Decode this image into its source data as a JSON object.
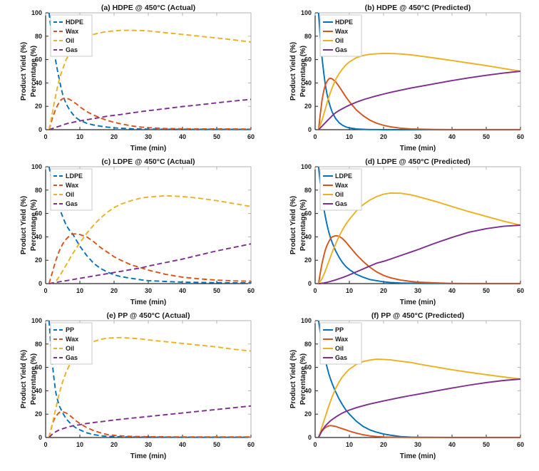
{
  "palette": {
    "polymer_blue": "#0072BD",
    "wax_orange": "#D95319",
    "oil_yellow": "#EDB120",
    "gas_purple": "#7E2F8E"
  },
  "axis_style": {
    "spine_dark": "#262626",
    "spine_light": "#b3b3b3",
    "text_color": "#1a1a1a"
  },
  "chart_data": [
    {
      "type": "line",
      "title": "(a) HDPE @ 450°C (Actual)",
      "xlabel": "Time (min)",
      "ylabel_line1": "Product Yield (%)",
      "ylabel_line2": "Percentage (%)",
      "line_style": "dashed",
      "legend_position": "top-left",
      "xlim": [
        0,
        60
      ],
      "ylim": [
        0,
        100
      ],
      "x_ticks": [
        0,
        10,
        20,
        30,
        40,
        50,
        60
      ],
      "y_ticks": [
        0,
        20,
        40,
        60,
        80,
        100
      ],
      "x": [
        1,
        1.5,
        2,
        2.5,
        3,
        3.5,
        4,
        4.5,
        5,
        6,
        7,
        8,
        9,
        10,
        12,
        14,
        16,
        18,
        20,
        22,
        25,
        28,
        30,
        35,
        40,
        45,
        50,
        55,
        60
      ],
      "series": [
        {
          "name": "HDPE",
          "color": "#0072BD",
          "y": [
            100,
            88,
            77,
            67,
            58,
            50,
            43,
            36,
            30,
            22,
            17,
            13,
            10,
            8,
            5.5,
            4,
            3,
            2.2,
            1.6,
            1.2,
            0.8,
            0.6,
            0.5,
            0.4,
            0.4,
            0.3,
            0.3,
            0.3,
            0.3
          ]
        },
        {
          "name": "Wax",
          "color": "#D95319",
          "y": [
            0,
            5,
            10,
            14,
            18,
            21,
            23.5,
            25.5,
            26.5,
            27,
            26,
            24,
            22,
            19.5,
            15.5,
            12.5,
            10,
            8,
            6.3,
            5,
            3.3,
            2.2,
            1.7,
            1,
            0.8,
            0.7,
            0.6,
            0.6,
            0.5
          ]
        },
        {
          "name": "Oil",
          "color": "#EDB120",
          "y": [
            0,
            7,
            15,
            23,
            30,
            37,
            43,
            48,
            52,
            60,
            65,
            69,
            72,
            75,
            79,
            81.5,
            83,
            84,
            84.5,
            85,
            85,
            84.8,
            84.5,
            83,
            81.5,
            80,
            78.5,
            76.8,
            75
          ]
        },
        {
          "name": "Gas",
          "color": "#7E2F8E",
          "y": [
            0,
            0.5,
            1,
            1.5,
            2,
            2.5,
            3,
            3.5,
            4,
            5,
            5.7,
            6.3,
            7,
            7.5,
            8.5,
            9.5,
            10.5,
            11.5,
            12.3,
            13,
            14.3,
            15.5,
            16.3,
            18,
            19.8,
            21.3,
            23,
            24.5,
            26
          ]
        }
      ]
    },
    {
      "type": "line",
      "title": "(b) HDPE @ 450°C (Predicted)",
      "xlabel": "Time (min)",
      "ylabel_line1": "Product Yield (%)",
      "ylabel_line2": "Percentage (%)",
      "line_style": "solid",
      "legend_position": "top-left",
      "xlim": [
        0,
        60
      ],
      "ylim": [
        0,
        100
      ],
      "x_ticks": [
        0,
        10,
        20,
        30,
        40,
        50,
        60
      ],
      "y_ticks": [
        0,
        20,
        40,
        60,
        80,
        100
      ],
      "x": [
        1,
        1.5,
        2,
        2.5,
        3,
        3.5,
        4,
        4.5,
        5,
        6,
        7,
        8,
        9,
        10,
        12,
        14,
        16,
        18,
        20,
        22,
        25,
        28,
        30,
        35,
        40,
        45,
        50,
        55,
        60
      ],
      "series": [
        {
          "name": "HDPE",
          "color": "#0072BD",
          "y": [
            100,
            79,
            62,
            49,
            38,
            30,
            24,
            19,
            15,
            9.5,
            6,
            3.8,
            2.4,
            1.5,
            0.6,
            0.3,
            0.1,
            0.1,
            0,
            0,
            0,
            0,
            0,
            0,
            0,
            0,
            0,
            0,
            0
          ]
        },
        {
          "name": "Wax",
          "color": "#D95319",
          "y": [
            0,
            13,
            25,
            33,
            38.5,
            41.5,
            43.5,
            44,
            43.5,
            41,
            37,
            32.5,
            28,
            24,
            17,
            12,
            8.2,
            5.5,
            3.7,
            2.5,
            1.3,
            0.7,
            0.5,
            0.2,
            0.1,
            0.1,
            0.1,
            0.1,
            0.1
          ]
        },
        {
          "name": "Oil",
          "color": "#EDB120",
          "y": [
            0,
            4,
            8,
            13,
            18,
            23,
            28,
            32,
            36,
            43,
            48,
            52,
            55.5,
            58,
            61.5,
            63.5,
            64.5,
            65,
            65.2,
            65.2,
            64.8,
            64,
            63.3,
            61.3,
            59.2,
            57,
            54.8,
            52.4,
            50
          ]
        },
        {
          "name": "Gas",
          "color": "#7E2F8E",
          "y": [
            0,
            1.5,
            3,
            4.5,
            6,
            7.5,
            9,
            10.5,
            12,
            14.5,
            16.4,
            18,
            19.6,
            21,
            23.5,
            25.6,
            27.4,
            29,
            30.5,
            31.9,
            33.8,
            35.6,
            36.7,
            39.4,
            42,
            44.4,
            46.5,
            48.4,
            50
          ]
        }
      ]
    },
    {
      "type": "line",
      "title": "(c) LDPE @ 450°C (Actual)",
      "xlabel": "Time (min)",
      "ylabel_line1": "Product Yield (%)",
      "ylabel_line2": "Percentage (%)",
      "line_style": "dashed",
      "legend_position": "top-left",
      "xlim": [
        0,
        60
      ],
      "ylim": [
        0,
        100
      ],
      "x_ticks": [
        0,
        10,
        20,
        30,
        40,
        50,
        60
      ],
      "y_ticks": [
        0,
        20,
        40,
        60,
        80,
        100
      ],
      "x": [
        1,
        1.5,
        2,
        2.5,
        3,
        3.5,
        4,
        4.5,
        5,
        6,
        7,
        8,
        9,
        10,
        12,
        14,
        16,
        18,
        20,
        22,
        25,
        28,
        30,
        35,
        40,
        45,
        50,
        55,
        60
      ],
      "series": [
        {
          "name": "LDPE",
          "color": "#0072BD",
          "y": [
            100,
            93,
            87,
            81,
            75,
            70,
            65,
            61,
            57,
            50,
            45.5,
            42,
            37,
            32,
            24,
            17.5,
            13,
            10,
            7.5,
            6,
            4.5,
            3.2,
            2.5,
            1.8,
            1.2,
            1,
            0.8,
            0.7,
            0.6
          ]
        },
        {
          "name": "Wax",
          "color": "#D95319",
          "y": [
            0,
            5,
            10,
            15,
            20,
            24,
            28,
            31,
            34,
            38,
            41,
            42.5,
            42.5,
            42,
            40,
            36,
            31,
            27,
            23,
            20,
            16,
            13.5,
            11.5,
            8,
            5.5,
            4,
            3,
            2.3,
            2
          ]
        },
        {
          "name": "Oil",
          "color": "#EDB120",
          "y": [
            0,
            0.2,
            0.5,
            1.2,
            2,
            4,
            6,
            8.5,
            11,
            16,
            21,
            26,
            30.5,
            35,
            43,
            50,
            56,
            61,
            65,
            68,
            71,
            73.3,
            74,
            75.2,
            74.5,
            73,
            71,
            68.5,
            66
          ]
        },
        {
          "name": "Gas",
          "color": "#7E2F8E",
          "y": [
            0,
            0.2,
            0.5,
            0.7,
            1,
            1.2,
            1.5,
            1.8,
            2,
            2.5,
            3,
            3.5,
            4,
            4.5,
            5.5,
            6.5,
            7.5,
            8.5,
            9.5,
            10.5,
            12,
            13.5,
            15,
            18,
            21,
            24.5,
            28,
            31,
            34
          ]
        }
      ]
    },
    {
      "type": "line",
      "title": "(d) LDPE @ 450°C (Predicted)",
      "xlabel": "Time (min)",
      "ylabel_line1": "Product Yield (%)",
      "ylabel_line2": "Percentage (%)",
      "line_style": "solid",
      "legend_position": "top-left",
      "xlim": [
        0,
        60
      ],
      "ylim": [
        0,
        100
      ],
      "x_ticks": [
        0,
        10,
        20,
        30,
        40,
        50,
        60
      ],
      "y_ticks": [
        0,
        20,
        40,
        60,
        80,
        100
      ],
      "x": [
        1,
        1.5,
        2,
        2.5,
        3,
        3.5,
        4,
        4.5,
        5,
        6,
        7,
        8,
        9,
        10,
        12,
        14,
        16,
        18,
        20,
        22,
        25,
        28,
        30,
        35,
        40,
        45,
        50,
        55,
        60
      ],
      "series": [
        {
          "name": "LDPE",
          "color": "#0072BD",
          "y": [
            100,
            86,
            75,
            65,
            57,
            50,
            44,
            39,
            35,
            28,
            22.5,
            18,
            14.5,
            12,
            8,
            5.5,
            3.5,
            2.5,
            1.5,
            1,
            0.5,
            0.3,
            0.2,
            0.1,
            0,
            0,
            0,
            0,
            0
          ]
        },
        {
          "name": "Wax",
          "color": "#D95319",
          "y": [
            0,
            9,
            17,
            23.5,
            29,
            33,
            36,
            38.5,
            40,
            41,
            40.5,
            38.5,
            35.5,
            32,
            25,
            19,
            14,
            10,
            7,
            5,
            3,
            1.8,
            1.2,
            0.6,
            0.2,
            0.1,
            0.1,
            0.1,
            0.1
          ]
        },
        {
          "name": "Oil",
          "color": "#EDB120",
          "y": [
            0,
            2,
            4,
            7.5,
            11,
            15,
            19,
            23,
            27,
            34,
            40.5,
            46,
            51,
            55,
            62,
            67.5,
            71.5,
            74.5,
            76.5,
            77.5,
            77.3,
            76,
            74.5,
            70.5,
            66,
            61.5,
            57.5,
            53.5,
            50
          ]
        },
        {
          "name": "Gas",
          "color": "#7E2F8E",
          "y": [
            0,
            0.1,
            0.3,
            0.5,
            0.8,
            1.1,
            1.5,
            1.9,
            2.3,
            3.2,
            4.2,
            5.2,
            6.3,
            7.5,
            10,
            12.5,
            15,
            17.5,
            19,
            21,
            24,
            27,
            29,
            34.5,
            39.5,
            44,
            47,
            49,
            50
          ]
        }
      ]
    },
    {
      "type": "line",
      "title": "(e) PP @ 450°C (Actual)",
      "xlabel": "Time (min)",
      "ylabel_line1": "Product Yield (%)",
      "ylabel_line2": "Percentage (%)",
      "line_style": "dashed",
      "legend_position": "top-left",
      "xlim": [
        0,
        60
      ],
      "ylim": [
        0,
        100
      ],
      "x_ticks": [
        0,
        10,
        20,
        30,
        40,
        50,
        60
      ],
      "y_ticks": [
        0,
        20,
        40,
        60,
        80,
        100
      ],
      "x": [
        1,
        1.5,
        2,
        2.5,
        3,
        3.5,
        4,
        4.5,
        5,
        6,
        7,
        8,
        9,
        10,
        12,
        14,
        16,
        18,
        20,
        22,
        25,
        28,
        30,
        35,
        40,
        45,
        50,
        55,
        60
      ],
      "series": [
        {
          "name": "PP",
          "color": "#0072BD",
          "y": [
            100,
            79,
            62,
            49,
            38,
            32,
            27,
            24,
            21,
            16,
            12.8,
            10,
            8,
            6.5,
            4,
            2.5,
            1.5,
            1,
            0.8,
            0.6,
            0.5,
            0.4,
            0.4,
            0.3,
            0.3,
            0.3,
            0.3,
            0.3,
            0.3
          ]
        },
        {
          "name": "Wax",
          "color": "#D95319",
          "y": [
            0,
            6,
            12,
            15.5,
            18,
            20,
            21.5,
            22,
            22,
            21,
            19,
            16.5,
            14,
            12,
            8.5,
            6,
            4,
            2.5,
            1.8,
            1.4,
            1,
            0.8,
            0.7,
            0.6,
            0.5,
            0.5,
            0.5,
            0.5,
            0.5
          ]
        },
        {
          "name": "Oil",
          "color": "#EDB120",
          "y": [
            0,
            6,
            12,
            19,
            25,
            32,
            38,
            43,
            48,
            56,
            62,
            67,
            71,
            74,
            79,
            82,
            84,
            85,
            85.3,
            85.5,
            85,
            84.3,
            83.5,
            82,
            80.5,
            79,
            77.5,
            75.5,
            74
          ]
        },
        {
          "name": "Gas",
          "color": "#7E2F8E",
          "y": [
            0,
            1.5,
            3,
            4,
            5,
            5.8,
            6.5,
            7,
            7.5,
            8.5,
            9.3,
            10,
            10.5,
            11,
            12,
            12.8,
            13.5,
            14.2,
            15,
            15.6,
            16.5,
            17.4,
            18,
            19.5,
            21,
            22.5,
            24,
            25.5,
            27
          ]
        }
      ]
    },
    {
      "type": "line",
      "title": "(f) PP @ 450°C (Predicted)",
      "xlabel": "Time (min)",
      "ylabel_line1": "Product Yield (%)",
      "ylabel_line2": "Percentage (%)",
      "line_style": "solid",
      "legend_position": "top-left",
      "xlim": [
        0,
        60
      ],
      "ylim": [
        0,
        100
      ],
      "x_ticks": [
        0,
        10,
        20,
        30,
        40,
        50,
        60
      ],
      "y_ticks": [
        0,
        20,
        40,
        60,
        80,
        100
      ],
      "x": [
        1,
        1.5,
        2,
        2.5,
        3,
        3.5,
        4,
        4.5,
        5,
        6,
        7,
        8,
        9,
        10,
        12,
        14,
        16,
        18,
        20,
        22,
        25,
        28,
        30,
        35,
        40,
        45,
        50,
        55,
        60
      ],
      "series": [
        {
          "name": "PP",
          "color": "#0072BD",
          "y": [
            100,
            90,
            81,
            73,
            66,
            60,
            54.5,
            50,
            46,
            39,
            33,
            28,
            23.5,
            20,
            14,
            9.5,
            6.5,
            4.5,
            3,
            2,
            0.8,
            0.3,
            0.2,
            0.1,
            0,
            0,
            0,
            0,
            0
          ]
        },
        {
          "name": "Wax",
          "color": "#D95319",
          "y": [
            0,
            3,
            5.5,
            7.2,
            8.5,
            9.3,
            10,
            10.2,
            10,
            9.5,
            8.5,
            7.5,
            6.5,
            5.5,
            3.8,
            2.4,
            1.4,
            0.8,
            0.4,
            0.3,
            0.2,
            0.1,
            0.1,
            0.1,
            0.1,
            0.1,
            0.1,
            0.1,
            0.1
          ]
        },
        {
          "name": "Oil",
          "color": "#EDB120",
          "y": [
            0,
            4.5,
            9,
            13.5,
            18,
            22.5,
            27,
            31,
            35,
            42,
            47.5,
            52,
            55.5,
            58.5,
            62.5,
            65,
            66.3,
            67,
            66.8,
            66.4,
            65.3,
            64.2,
            63,
            60.5,
            58,
            55.8,
            53.8,
            51.8,
            50
          ]
        },
        {
          "name": "Gas",
          "color": "#7E2F8E",
          "y": [
            0,
            3,
            6,
            8,
            10,
            11.5,
            13,
            14.3,
            15.5,
            17.5,
            19.3,
            21,
            22.3,
            23.5,
            25.5,
            27.2,
            28.7,
            30,
            31.3,
            32.5,
            34.3,
            36,
            37,
            39.7,
            42.3,
            44.8,
            47,
            48.8,
            50
          ]
        }
      ]
    }
  ]
}
